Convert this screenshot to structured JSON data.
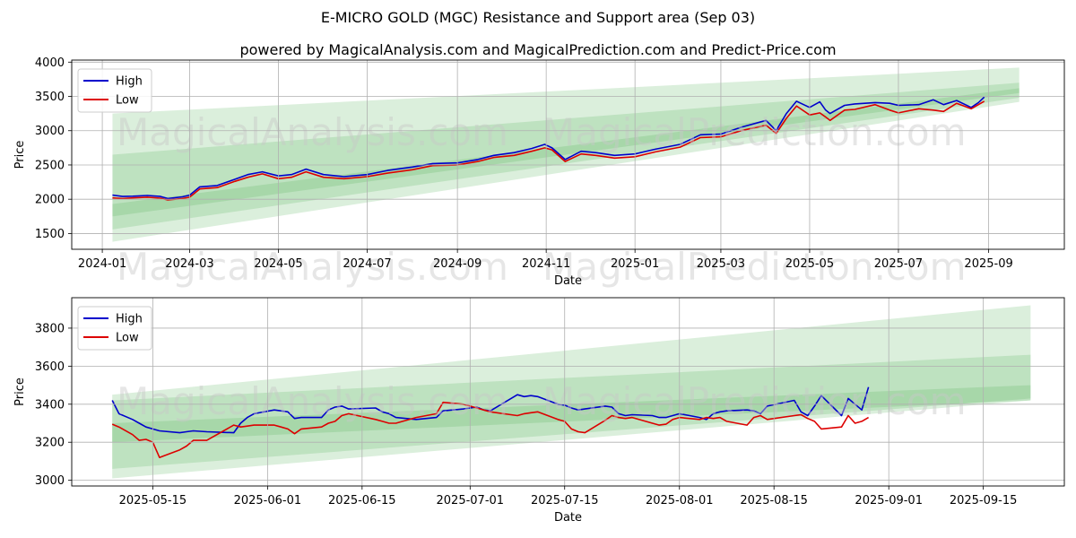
{
  "title": "E-MICRO GOLD (MGC) Resistance and Support area (Sep 03)",
  "subtitle": "powered by MagicalAnalysis.com and MagicalPrediction.com and Predict-Price.com",
  "watermarks": [
    "MagicalAnalysis.com",
    "MagicalPrediction.com"
  ],
  "colors": {
    "high": "#0000cc",
    "low": "#dd0000",
    "band": "#4caf50"
  },
  "chart_data": [
    {
      "type": "line",
      "xlabel": "Date",
      "ylabel": "Price",
      "xlim": [
        "2023-12-11",
        "2025-10-23"
      ],
      "ylim": [
        1270,
        4030
      ],
      "x_ticks": [
        "2024-01",
        "2024-03",
        "2024-05",
        "2024-07",
        "2024-09",
        "2024-11",
        "2025-01",
        "2025-03",
        "2025-05",
        "2025-07",
        "2025-09"
      ],
      "y_ticks": [
        1500,
        2000,
        2500,
        3000,
        3500,
        4000
      ],
      "grid": true,
      "legend": "top-left",
      "bands": [
        {
          "x": [
            "2024-01-08",
            "2025-09-22"
          ],
          "upper": [
            3250,
            3920
          ],
          "lower": [
            1380,
            3420
          ]
        },
        {
          "x": [
            "2024-01-08",
            "2025-09-22"
          ],
          "upper": [
            2650,
            3700
          ],
          "lower": [
            1560,
            3480
          ]
        },
        {
          "x": [
            "2024-01-08",
            "2025-09-22"
          ],
          "upper": [
            1930,
            3620
          ],
          "lower": [
            1750,
            3550
          ]
        }
      ],
      "series": [
        {
          "name": "High",
          "x": [
            "2024-01-08",
            "2024-01-15",
            "2024-01-22",
            "2024-02-01",
            "2024-02-10",
            "2024-02-15",
            "2024-02-25",
            "2024-03-01",
            "2024-03-08",
            "2024-03-20",
            "2024-04-01",
            "2024-04-10",
            "2024-04-20",
            "2024-05-01",
            "2024-05-10",
            "2024-05-20",
            "2024-06-01",
            "2024-06-15",
            "2024-07-01",
            "2024-07-15",
            "2024-08-01",
            "2024-08-15",
            "2024-09-01",
            "2024-09-15",
            "2024-09-26",
            "2024-10-10",
            "2024-10-22",
            "2024-10-31",
            "2024-11-05",
            "2024-11-14",
            "2024-11-25",
            "2024-12-05",
            "2024-12-18",
            "2025-01-01",
            "2025-01-15",
            "2025-02-01",
            "2025-02-15",
            "2025-03-01",
            "2025-03-15",
            "2025-04-01",
            "2025-04-08",
            "2025-04-15",
            "2025-04-22",
            "2025-05-01",
            "2025-05-08",
            "2025-05-12",
            "2025-05-15",
            "2025-05-25",
            "2025-06-01",
            "2025-06-15",
            "2025-06-25",
            "2025-07-01",
            "2025-07-15",
            "2025-07-25",
            "2025-08-01",
            "2025-08-10",
            "2025-08-20",
            "2025-08-25",
            "2025-08-29"
          ],
          "values": [
            2060,
            2040,
            2045,
            2055,
            2040,
            2010,
            2035,
            2060,
            2180,
            2200,
            2290,
            2360,
            2400,
            2340,
            2360,
            2440,
            2360,
            2330,
            2360,
            2420,
            2470,
            2520,
            2530,
            2580,
            2640,
            2680,
            2740,
            2800,
            2750,
            2580,
            2700,
            2680,
            2640,
            2660,
            2730,
            2800,
            2940,
            2950,
            3050,
            3150,
            3000,
            3250,
            3430,
            3340,
            3420,
            3300,
            3250,
            3370,
            3390,
            3410,
            3400,
            3370,
            3380,
            3450,
            3380,
            3440,
            3340,
            3410,
            3490
          ]
        },
        {
          "name": "Low",
          "x": [
            "2024-01-08",
            "2024-01-15",
            "2024-01-22",
            "2024-02-01",
            "2024-02-10",
            "2024-02-15",
            "2024-02-25",
            "2024-03-01",
            "2024-03-08",
            "2024-03-20",
            "2024-04-01",
            "2024-04-10",
            "2024-04-20",
            "2024-05-01",
            "2024-05-10",
            "2024-05-20",
            "2024-06-01",
            "2024-06-15",
            "2024-07-01",
            "2024-07-15",
            "2024-08-01",
            "2024-08-15",
            "2024-09-01",
            "2024-09-15",
            "2024-09-26",
            "2024-10-10",
            "2024-10-22",
            "2024-10-31",
            "2024-11-05",
            "2024-11-14",
            "2024-11-25",
            "2024-12-05",
            "2024-12-18",
            "2025-01-01",
            "2025-01-15",
            "2025-02-01",
            "2025-02-15",
            "2025-03-01",
            "2025-03-15",
            "2025-04-01",
            "2025-04-08",
            "2025-04-15",
            "2025-04-22",
            "2025-05-01",
            "2025-05-08",
            "2025-05-12",
            "2025-05-15",
            "2025-05-25",
            "2025-06-01",
            "2025-06-15",
            "2025-06-25",
            "2025-07-01",
            "2025-07-15",
            "2025-07-25",
            "2025-08-01",
            "2025-08-10",
            "2025-08-20",
            "2025-08-25",
            "2025-08-29"
          ],
          "values": [
            2020,
            2010,
            2020,
            2030,
            2015,
            1990,
            2010,
            2030,
            2150,
            2170,
            2260,
            2320,
            2370,
            2300,
            2320,
            2400,
            2320,
            2300,
            2330,
            2380,
            2430,
            2490,
            2500,
            2550,
            2610,
            2640,
            2700,
            2750,
            2720,
            2550,
            2660,
            2640,
            2600,
            2620,
            2690,
            2760,
            2900,
            2910,
            3000,
            3080,
            2960,
            3180,
            3360,
            3230,
            3260,
            3200,
            3150,
            3300,
            3310,
            3380,
            3300,
            3260,
            3320,
            3300,
            3280,
            3400,
            3320,
            3380,
            3430
          ]
        }
      ]
    },
    {
      "type": "line",
      "xlabel": "Date",
      "ylabel": "Price",
      "xlim": [
        "2025-05-03",
        "2025-09-27"
      ],
      "ylim": [
        2970,
        3960
      ],
      "x_ticks": [
        "2025-05-15",
        "2025-06-01",
        "2025-06-15",
        "2025-07-01",
        "2025-07-15",
        "2025-08-01",
        "2025-08-15",
        "2025-09-01",
        "2025-09-15"
      ],
      "y_ticks": [
        3000,
        3200,
        3400,
        3600,
        3800
      ],
      "grid": true,
      "legend": "top-left",
      "bands": [
        {
          "x": [
            "2025-05-09",
            "2025-09-22"
          ],
          "upper": [
            3450,
            3920
          ],
          "lower": [
            3010,
            3420
          ]
        },
        {
          "x": [
            "2025-05-09",
            "2025-09-22"
          ],
          "upper": [
            3420,
            3660
          ],
          "lower": [
            3060,
            3430
          ]
        },
        {
          "x": [
            "2025-05-09",
            "2025-09-22"
          ],
          "upper": [
            3300,
            3500
          ],
          "lower": [
            3200,
            3420
          ]
        }
      ],
      "series": [
        {
          "name": "High",
          "x": [
            "2025-05-09",
            "2025-05-10",
            "2025-05-12",
            "2025-05-13",
            "2025-05-14",
            "2025-05-15",
            "2025-05-16",
            "2025-05-19",
            "2025-05-20",
            "2025-05-21",
            "2025-05-23",
            "2025-05-27",
            "2025-05-28",
            "2025-05-29",
            "2025-05-30",
            "2025-06-02",
            "2025-06-03",
            "2025-06-04",
            "2025-06-05",
            "2025-06-06",
            "2025-06-09",
            "2025-06-10",
            "2025-06-11",
            "2025-06-12",
            "2025-06-13",
            "2025-06-17",
            "2025-06-18",
            "2025-06-19",
            "2025-06-20",
            "2025-06-23",
            "2025-06-26",
            "2025-06-27",
            "2025-06-30",
            "2025-07-01",
            "2025-07-02",
            "2025-07-03",
            "2025-07-04",
            "2025-07-08",
            "2025-07-09",
            "2025-07-10",
            "2025-07-11",
            "2025-07-14",
            "2025-07-15",
            "2025-07-16",
            "2025-07-17",
            "2025-07-18",
            "2025-07-21",
            "2025-07-22",
            "2025-07-23",
            "2025-07-24",
            "2025-07-25",
            "2025-07-28",
            "2025-07-29",
            "2025-07-30",
            "2025-07-31",
            "2025-08-01",
            "2025-08-04",
            "2025-08-05",
            "2025-08-06",
            "2025-08-07",
            "2025-08-08",
            "2025-08-11",
            "2025-08-12",
            "2025-08-13",
            "2025-08-14",
            "2025-08-18",
            "2025-08-19",
            "2025-08-20",
            "2025-08-21",
            "2025-08-22",
            "2025-08-25",
            "2025-08-26",
            "2025-08-27",
            "2025-08-28",
            "2025-08-29"
          ],
          "values": [
            3420,
            3350,
            3320,
            3300,
            3280,
            3270,
            3260,
            3250,
            3255,
            3260,
            3255,
            3250,
            3300,
            3330,
            3350,
            3370,
            3365,
            3360,
            3325,
            3330,
            3330,
            3370,
            3385,
            3390,
            3375,
            3380,
            3360,
            3350,
            3330,
            3320,
            3330,
            3365,
            3375,
            3380,
            3385,
            3370,
            3365,
            3450,
            3440,
            3445,
            3440,
            3400,
            3395,
            3380,
            3370,
            3375,
            3390,
            3385,
            3350,
            3340,
            3345,
            3340,
            3330,
            3330,
            3340,
            3350,
            3330,
            3320,
            3350,
            3360,
            3365,
            3370,
            3365,
            3350,
            3390,
            3420,
            3360,
            3340,
            3390,
            3445,
            3340,
            3430,
            3400,
            3370,
            3490
          ]
        },
        {
          "name": "Low",
          "x": [
            "2025-05-09",
            "2025-05-10",
            "2025-05-12",
            "2025-05-13",
            "2025-05-14",
            "2025-05-15",
            "2025-05-16",
            "2025-05-19",
            "2025-05-20",
            "2025-05-21",
            "2025-05-23",
            "2025-05-27",
            "2025-05-28",
            "2025-05-29",
            "2025-05-30",
            "2025-06-02",
            "2025-06-03",
            "2025-06-04",
            "2025-06-05",
            "2025-06-06",
            "2025-06-09",
            "2025-06-10",
            "2025-06-11",
            "2025-06-12",
            "2025-06-13",
            "2025-06-17",
            "2025-06-18",
            "2025-06-19",
            "2025-06-20",
            "2025-06-23",
            "2025-06-26",
            "2025-06-27",
            "2025-06-30",
            "2025-07-01",
            "2025-07-02",
            "2025-07-03",
            "2025-07-04",
            "2025-07-08",
            "2025-07-09",
            "2025-07-10",
            "2025-07-11",
            "2025-07-14",
            "2025-07-15",
            "2025-07-16",
            "2025-07-17",
            "2025-07-18",
            "2025-07-21",
            "2025-07-22",
            "2025-07-23",
            "2025-07-24",
            "2025-07-25",
            "2025-07-28",
            "2025-07-29",
            "2025-07-30",
            "2025-07-31",
            "2025-08-01",
            "2025-08-04",
            "2025-08-05",
            "2025-08-06",
            "2025-08-07",
            "2025-08-08",
            "2025-08-11",
            "2025-08-12",
            "2025-08-13",
            "2025-08-14",
            "2025-08-18",
            "2025-08-19",
            "2025-08-20",
            "2025-08-21",
            "2025-08-22",
            "2025-08-25",
            "2025-08-26",
            "2025-08-27",
            "2025-08-28",
            "2025-08-29"
          ],
          "values": [
            3295,
            3280,
            3240,
            3210,
            3215,
            3200,
            3120,
            3160,
            3180,
            3210,
            3210,
            3290,
            3280,
            3285,
            3290,
            3290,
            3280,
            3270,
            3245,
            3270,
            3280,
            3300,
            3310,
            3340,
            3350,
            3320,
            3310,
            3300,
            3300,
            3330,
            3350,
            3410,
            3400,
            3390,
            3380,
            3370,
            3360,
            3340,
            3350,
            3355,
            3360,
            3320,
            3310,
            3270,
            3255,
            3250,
            3315,
            3340,
            3330,
            3325,
            3330,
            3300,
            3290,
            3295,
            3320,
            3330,
            3320,
            3330,
            3325,
            3330,
            3310,
            3290,
            3330,
            3340,
            3320,
            3340,
            3345,
            3325,
            3310,
            3270,
            3280,
            3340,
            3300,
            3310,
            3330
          ]
        }
      ]
    }
  ]
}
